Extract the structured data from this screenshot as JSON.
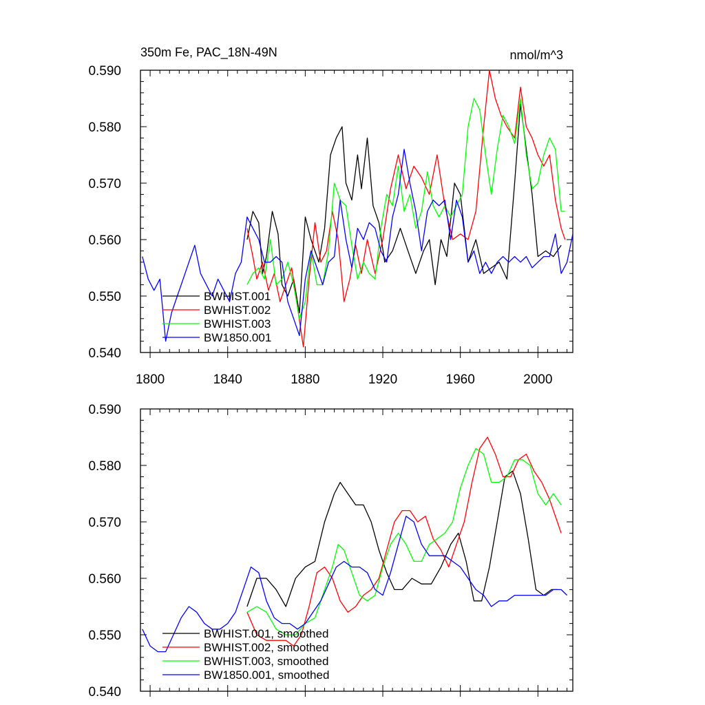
{
  "chart_data": [
    {
      "type": "line",
      "title": "350m Fe, PAC_18N-49N",
      "units": "nmol/m^3",
      "xlim": [
        1795,
        2018
      ],
      "ylim": [
        0.54,
        0.59
      ],
      "xticks": [
        1800,
        1840,
        1880,
        1920,
        1960,
        2000
      ],
      "xtick_labels": [
        "1800",
        "1840",
        "1880",
        "1920",
        "1960",
        "2000"
      ],
      "yticks": [
        0.54,
        0.55,
        0.56,
        0.57,
        0.58,
        0.59
      ],
      "ytick_labels": [
        "0.540",
        "0.550",
        "0.560",
        "0.570",
        "0.580",
        "0.590"
      ],
      "legend_position": "bottom-left",
      "series": [
        {
          "name": "BWHIST.001",
          "color": "#000000",
          "x": [
            1850,
            1853,
            1856,
            1858,
            1860,
            1863,
            1866,
            1868,
            1871,
            1874,
            1877,
            1880,
            1883,
            1887,
            1890,
            1893,
            1896,
            1899,
            1901,
            1904,
            1907,
            1909,
            1912,
            1915,
            1918,
            1921,
            1925,
            1929,
            1933,
            1937,
            1941,
            1944,
            1947,
            1950,
            1953,
            1957,
            1960,
            1964,
            1968,
            1972,
            1976,
            1980,
            1984,
            1988,
            1991,
            1994,
            1997,
            2000,
            2004,
            2008,
            2012
          ],
          "y": [
            0.56,
            0.565,
            0.563,
            0.554,
            0.557,
            0.565,
            0.561,
            0.552,
            0.55,
            0.553,
            0.547,
            0.564,
            0.56,
            0.556,
            0.562,
            0.575,
            0.578,
            0.58,
            0.57,
            0.567,
            0.575,
            0.569,
            0.578,
            0.566,
            0.563,
            0.556,
            0.558,
            0.562,
            0.558,
            0.554,
            0.558,
            0.56,
            0.552,
            0.56,
            0.557,
            0.57,
            0.568,
            0.556,
            0.56,
            0.554,
            0.555,
            0.556,
            0.553,
            0.57,
            0.584,
            0.576,
            0.568,
            0.557,
            0.558,
            0.557,
            0.559
          ]
        },
        {
          "name": "BWHIST.002",
          "color": "#ff0000",
          "x": [
            1850,
            1853,
            1855,
            1858,
            1861,
            1864,
            1867,
            1870,
            1873,
            1876,
            1879,
            1882,
            1885,
            1888,
            1891,
            1894,
            1897,
            1900,
            1903,
            1906,
            1909,
            1912,
            1916,
            1920,
            1924,
            1928,
            1932,
            1936,
            1940,
            1944,
            1948,
            1952,
            1956,
            1960,
            1964,
            1968,
            1972,
            1975,
            1978,
            1981,
            1984,
            1988,
            1991,
            1994,
            1997,
            2000,
            2003,
            2006,
            2009,
            2012,
            2014
          ],
          "y": [
            0.562,
            0.557,
            0.553,
            0.556,
            0.551,
            0.554,
            0.549,
            0.552,
            0.555,
            0.548,
            0.541,
            0.553,
            0.563,
            0.556,
            0.558,
            0.565,
            0.56,
            0.549,
            0.553,
            0.559,
            0.554,
            0.56,
            0.554,
            0.56,
            0.569,
            0.575,
            0.569,
            0.573,
            0.571,
            0.568,
            0.575,
            0.566,
            0.56,
            0.561,
            0.56,
            0.565,
            0.58,
            0.59,
            0.585,
            0.582,
            0.58,
            0.578,
            0.587,
            0.58,
            0.578,
            0.575,
            0.573,
            0.575,
            0.567,
            0.562,
            0.56
          ]
        },
        {
          "name": "BWHIST.003",
          "color": "#00ff00",
          "x": [
            1850,
            1853,
            1856,
            1859,
            1862,
            1865,
            1868,
            1871,
            1874,
            1877,
            1880,
            1883,
            1886,
            1889,
            1892,
            1895,
            1898,
            1901,
            1904,
            1907,
            1910,
            1913,
            1916,
            1919,
            1922,
            1925,
            1928,
            1931,
            1934,
            1937,
            1940,
            1943,
            1946,
            1949,
            1952,
            1955,
            1958,
            1961,
            1964,
            1967,
            1970,
            1973,
            1976,
            1979,
            1982,
            1985,
            1988,
            1991,
            1994,
            1997,
            2000,
            2003,
            2006,
            2009,
            2012,
            2014
          ],
          "y": [
            0.552,
            0.554,
            0.555,
            0.553,
            0.56,
            0.552,
            0.553,
            0.556,
            0.552,
            0.546,
            0.549,
            0.558,
            0.552,
            0.552,
            0.558,
            0.57,
            0.567,
            0.566,
            0.559,
            0.553,
            0.556,
            0.554,
            0.553,
            0.562,
            0.568,
            0.566,
            0.573,
            0.565,
            0.568,
            0.562,
            0.565,
            0.572,
            0.566,
            0.564,
            0.566,
            0.564,
            0.566,
            0.568,
            0.58,
            0.585,
            0.583,
            0.575,
            0.568,
            0.576,
            0.582,
            0.58,
            0.577,
            0.585,
            0.575,
            0.569,
            0.57,
            0.575,
            0.578,
            0.576,
            0.565,
            0.565
          ]
        },
        {
          "name": "BW1850.001",
          "color": "#0000ff",
          "x": [
            1796,
            1799,
            1802,
            1805,
            1808,
            1811,
            1814,
            1817,
            1820,
            1823,
            1826,
            1829,
            1832,
            1835,
            1838,
            1841,
            1844,
            1847,
            1850,
            1853,
            1856,
            1859,
            1862,
            1865,
            1868,
            1871,
            1874,
            1877,
            1880,
            1883,
            1886,
            1889,
            1892,
            1895,
            1898,
            1901,
            1904,
            1907,
            1910,
            1913,
            1916,
            1919,
            1922,
            1925,
            1928,
            1931,
            1934,
            1937,
            1940,
            1943,
            1946,
            1949,
            1952,
            1955,
            1958,
            1961,
            1964,
            1967,
            1970,
            1973,
            1976,
            1979,
            1982,
            1985,
            1988,
            1991,
            1994,
            1997,
            2000,
            2003,
            2006,
            2009,
            2012,
            2015,
            2018
          ],
          "y": [
            0.557,
            0.553,
            0.551,
            0.553,
            0.542,
            0.547,
            0.55,
            0.553,
            0.556,
            0.559,
            0.554,
            0.552,
            0.55,
            0.553,
            0.551,
            0.549,
            0.554,
            0.556,
            0.564,
            0.562,
            0.56,
            0.556,
            0.556,
            0.557,
            0.556,
            0.549,
            0.546,
            0.543,
            0.553,
            0.558,
            0.555,
            0.552,
            0.556,
            0.557,
            0.567,
            0.56,
            0.555,
            0.562,
            0.56,
            0.563,
            0.562,
            0.558,
            0.556,
            0.564,
            0.568,
            0.576,
            0.57,
            0.565,
            0.558,
            0.565,
            0.567,
            0.566,
            0.567,
            0.56,
            0.567,
            0.564,
            0.556,
            0.558,
            0.554,
            0.556,
            0.554,
            0.556,
            0.557,
            0.556,
            0.557,
            0.556,
            0.557,
            0.555,
            0.556,
            0.557,
            0.557,
            0.561,
            0.554,
            0.556,
            0.561
          ]
        }
      ],
      "legend_labels": [
        "BWHIST.001",
        "BWHIST.002",
        "BWHIST.003",
        "BW1850.001"
      ]
    },
    {
      "type": "line",
      "title": "",
      "xlim": [
        1795,
        2018
      ],
      "ylim": [
        0.54,
        0.59
      ],
      "xticks": [
        1800,
        1840,
        1880,
        1920,
        1960,
        2000
      ],
      "yticks": [
        0.54,
        0.55,
        0.56,
        0.57,
        0.58,
        0.59
      ],
      "ytick_labels": [
        "0.540",
        "0.550",
        "0.560",
        "0.570",
        "0.580",
        "0.590"
      ],
      "legend_position": "bottom-left",
      "series": [
        {
          "name": "BWHIST.001, smoothed",
          "color": "#000000",
          "x": [
            1850,
            1855,
            1860,
            1865,
            1870,
            1875,
            1880,
            1885,
            1890,
            1895,
            1898,
            1902,
            1906,
            1910,
            1914,
            1918,
            1922,
            1926,
            1930,
            1935,
            1940,
            1945,
            1950,
            1955,
            1959,
            1963,
            1967,
            1971,
            1975,
            1979,
            1983,
            1987,
            1991,
            1995,
            1999,
            2003,
            2007,
            2010
          ],
          "y": [
            0.555,
            0.56,
            0.56,
            0.558,
            0.555,
            0.56,
            0.562,
            0.563,
            0.57,
            0.575,
            0.577,
            0.575,
            0.573,
            0.573,
            0.57,
            0.565,
            0.561,
            0.558,
            0.558,
            0.56,
            0.559,
            0.559,
            0.562,
            0.566,
            0.568,
            0.563,
            0.556,
            0.556,
            0.562,
            0.57,
            0.578,
            0.579,
            0.575,
            0.567,
            0.558,
            0.557,
            0.558,
            0.558
          ]
        },
        {
          "name": "BWHIST.002, smoothed",
          "color": "#ff0000",
          "x": [
            1850,
            1855,
            1860,
            1865,
            1870,
            1874,
            1878,
            1882,
            1886,
            1890,
            1894,
            1898,
            1902,
            1906,
            1910,
            1914,
            1918,
            1922,
            1926,
            1930,
            1934,
            1938,
            1942,
            1946,
            1950,
            1954,
            1958,
            1962,
            1966,
            1970,
            1974,
            1978,
            1982,
            1986,
            1990,
            1994,
            1998,
            2002,
            2006,
            2010,
            2012
          ],
          "y": [
            0.554,
            0.55,
            0.549,
            0.549,
            0.549,
            0.548,
            0.55,
            0.555,
            0.561,
            0.562,
            0.56,
            0.556,
            0.554,
            0.555,
            0.557,
            0.558,
            0.56,
            0.565,
            0.57,
            0.572,
            0.572,
            0.57,
            0.571,
            0.567,
            0.565,
            0.562,
            0.566,
            0.57,
            0.577,
            0.583,
            0.585,
            0.582,
            0.578,
            0.578,
            0.581,
            0.582,
            0.579,
            0.577,
            0.574,
            0.57,
            0.568
          ]
        },
        {
          "name": "BWHIST.003, smoothed",
          "color": "#00ff00",
          "x": [
            1850,
            1855,
            1860,
            1865,
            1870,
            1875,
            1880,
            1885,
            1890,
            1894,
            1897,
            1900,
            1904,
            1908,
            1912,
            1916,
            1920,
            1924,
            1928,
            1932,
            1936,
            1940,
            1944,
            1948,
            1952,
            1956,
            1960,
            1964,
            1968,
            1972,
            1976,
            1980,
            1984,
            1988,
            1992,
            1996,
            2000,
            2004,
            2008,
            2012
          ],
          "y": [
            0.554,
            0.555,
            0.554,
            0.551,
            0.55,
            0.55,
            0.552,
            0.553,
            0.558,
            0.562,
            0.566,
            0.565,
            0.561,
            0.557,
            0.556,
            0.557,
            0.562,
            0.566,
            0.568,
            0.566,
            0.563,
            0.563,
            0.566,
            0.567,
            0.568,
            0.57,
            0.576,
            0.58,
            0.583,
            0.582,
            0.577,
            0.577,
            0.578,
            0.581,
            0.581,
            0.58,
            0.575,
            0.573,
            0.575,
            0.573
          ]
        },
        {
          "name": "BW1850.001, smoothed",
          "color": "#0000ff",
          "x": [
            1796,
            1800,
            1804,
            1808,
            1812,
            1816,
            1820,
            1824,
            1828,
            1832,
            1836,
            1840,
            1844,
            1848,
            1852,
            1856,
            1860,
            1864,
            1868,
            1872,
            1876,
            1880,
            1884,
            1888,
            1892,
            1896,
            1900,
            1904,
            1908,
            1912,
            1916,
            1920,
            1924,
            1928,
            1932,
            1936,
            1940,
            1944,
            1948,
            1952,
            1956,
            1960,
            1964,
            1968,
            1972,
            1976,
            1980,
            1984,
            1988,
            1992,
            1996,
            2000,
            2004,
            2008,
            2012,
            2015
          ],
          "y": [
            0.551,
            0.548,
            0.547,
            0.547,
            0.55,
            0.553,
            0.555,
            0.554,
            0.552,
            0.551,
            0.551,
            0.552,
            0.554,
            0.558,
            0.562,
            0.561,
            0.556,
            0.553,
            0.552,
            0.552,
            0.551,
            0.552,
            0.554,
            0.556,
            0.559,
            0.562,
            0.563,
            0.562,
            0.562,
            0.561,
            0.558,
            0.557,
            0.561,
            0.566,
            0.571,
            0.57,
            0.566,
            0.564,
            0.564,
            0.564,
            0.563,
            0.562,
            0.56,
            0.558,
            0.557,
            0.555,
            0.556,
            0.556,
            0.557,
            0.557,
            0.557,
            0.557,
            0.557,
            0.558,
            0.558,
            0.557
          ]
        }
      ],
      "legend_labels": [
        "BWHIST.001, smoothed",
        "BWHIST.002, smoothed",
        "BWHIST.003, smoothed",
        "BW1850.001, smoothed"
      ]
    }
  ]
}
